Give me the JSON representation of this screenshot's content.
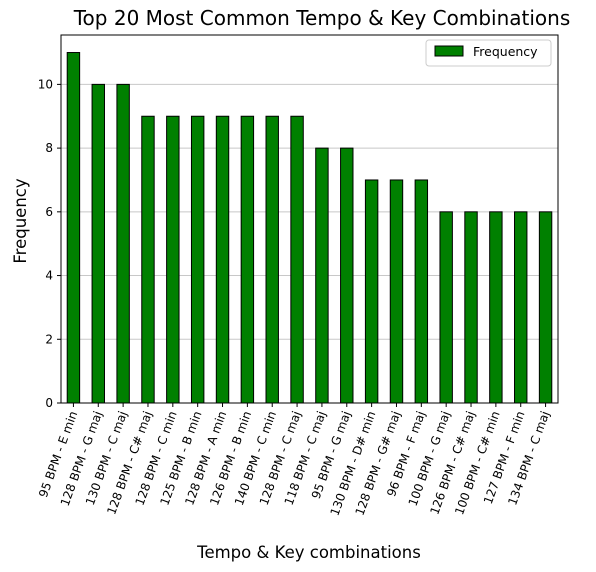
{
  "chart_data": {
    "type": "bar",
    "title": "Top 20 Most Common Tempo & Key Combinations",
    "xlabel": "Tempo & Key combinations",
    "ylabel": "Frequency",
    "ylim": [
      0,
      11.55
    ],
    "yticks": [
      0,
      2,
      4,
      6,
      8,
      10
    ],
    "grid": "horizontal",
    "legend_position": "top-right",
    "categories": [
      "95 BPM - E min",
      "128 BPM - G maj",
      "130 BPM - C maj",
      "128 BPM - C# maj",
      "128 BPM - C min",
      "125 BPM - B min",
      "128 BPM - A min",
      "126 BPM - B min",
      "140 BPM - C min",
      "128 BPM - C maj",
      "118 BPM - C maj",
      "95 BPM - G maj",
      "130 BPM - D# min",
      "128 BPM - G# maj",
      "96 BPM - F maj",
      "100 BPM - G maj",
      "126 BPM - C# maj",
      "100 BPM - C# min",
      "127 BPM - F min",
      "134 BPM - C maj"
    ],
    "series": [
      {
        "name": "Frequency",
        "color": "#008000",
        "values": [
          11,
          10,
          10,
          9,
          9,
          9,
          9,
          9,
          9,
          9,
          8,
          8,
          7,
          7,
          7,
          6,
          6,
          6,
          6,
          6
        ]
      }
    ]
  }
}
